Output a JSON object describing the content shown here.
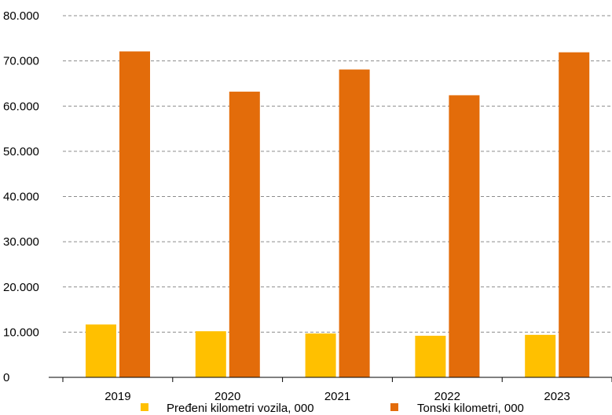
{
  "chart_data": {
    "type": "bar",
    "categories": [
      "2019",
      "2020",
      "2021",
      "2022",
      "2023"
    ],
    "series": [
      {
        "name": "Pređeni kilometri vozila, 000",
        "color": "#FFC000",
        "values": [
          11700,
          10200,
          9700,
          9200,
          9400
        ]
      },
      {
        "name": "Tonski kilometri, 000",
        "color": "#E36C0A",
        "values": [
          72100,
          63200,
          68100,
          62400,
          71900
        ]
      }
    ],
    "ylim": [
      0,
      80000
    ],
    "yticks": [
      "0",
      "10.000",
      "20.000",
      "30.000",
      "40.000",
      "50.000",
      "60.000",
      "70.000",
      "80.000"
    ],
    "grid": true,
    "gridline_style": "dashed",
    "legend_position": "bottom"
  }
}
